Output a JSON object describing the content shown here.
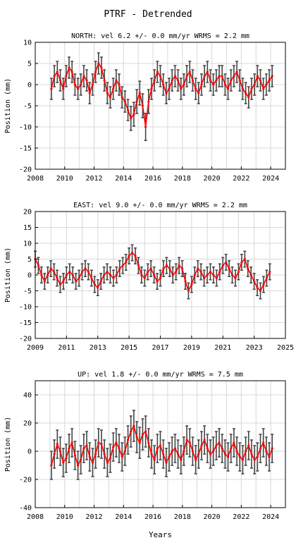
{
  "figure": {
    "title": "PTRF - Detrended",
    "xlabel": "Years"
  },
  "colors": {
    "error_bars": "#444444",
    "series": "#ff0000",
    "grid": "#d8d8d8",
    "axes": "#000000"
  },
  "chart_data": [
    {
      "type": "scatter",
      "title": "NORTH: vel 6.2 +/- 0.0 mm/yr WRMS = 2.2 mm",
      "ylabel": "Position (mm)",
      "xlim": [
        2008,
        2025
      ],
      "ylim": [
        -20,
        10
      ],
      "xticks": [
        2008,
        2010,
        2012,
        2014,
        2016,
        2018,
        2020,
        2022,
        2024
      ],
      "yticks": [
        -20,
        -15,
        -10,
        -5,
        0,
        5,
        10
      ],
      "grid": true,
      "series": [
        {
          "x": [
            2009.1,
            2009.3,
            2009.5,
            2009.7,
            2009.9,
            2010.1,
            2010.3,
            2010.5,
            2010.7,
            2010.9,
            2011.1,
            2011.3,
            2011.5,
            2011.7,
            2011.9,
            2012.1,
            2012.3,
            2012.5,
            2012.7,
            2012.9,
            2013.1,
            2013.3,
            2013.5,
            2013.7,
            2013.9,
            2014.1,
            2014.3,
            2014.5,
            2014.7,
            2014.9,
            2015.1,
            2015.3,
            2015.5,
            2015.7,
            2015.9,
            2016.1,
            2016.3,
            2016.5,
            2016.7,
            2016.9,
            2017.1,
            2017.3,
            2017.5,
            2017.7,
            2017.9,
            2018.1,
            2018.3,
            2018.5,
            2018.7,
            2018.9,
            2019.1,
            2019.3,
            2019.5,
            2019.7,
            2019.9,
            2020.1,
            2020.3,
            2020.5,
            2020.7,
            2020.9,
            2021.1,
            2021.3,
            2021.5,
            2021.7,
            2021.9,
            2022.1,
            2022.3,
            2022.5,
            2022.7,
            2022.9,
            2023.1,
            2023.3,
            2023.5,
            2023.7,
            2023.9,
            2024.1
          ],
          "y": [
            -1,
            2,
            3,
            1,
            -1,
            2,
            4,
            3,
            0,
            -1,
            0,
            2,
            1,
            -2,
            0,
            3,
            5,
            4,
            1,
            -2,
            -3,
            -1,
            1,
            0,
            -3,
            -4,
            -6,
            -8,
            -7,
            -4,
            -2,
            -5,
            -10,
            -4,
            -1,
            1,
            3,
            2,
            0,
            -2,
            -1,
            1,
            2,
            1,
            -1,
            0,
            2,
            3,
            1,
            -1,
            -2,
            0,
            2,
            3,
            1,
            0,
            1,
            2,
            2,
            0,
            -1,
            1,
            2,
            3,
            1,
            -1,
            -2,
            -3,
            -1,
            0,
            2,
            1,
            -1,
            0,
            1,
            2
          ],
          "err": [
            2.5,
            2.5,
            2.5,
            2.5,
            2.5,
            2.5,
            2.5,
            2.5,
            2.5,
            2.5,
            2.5,
            2.5,
            2.5,
            2.5,
            2.5,
            2.5,
            2.5,
            2.5,
            2.5,
            2.5,
            2.5,
            2.5,
            2.5,
            2.5,
            2.5,
            2.5,
            2.5,
            2.8,
            2.8,
            2.8,
            2.8,
            2.8,
            3.2,
            2.8,
            2.5,
            2.5,
            2.5,
            2.5,
            2.5,
            2.5,
            2.5,
            2.5,
            2.5,
            2.5,
            2.5,
            2.5,
            2.5,
            2.5,
            2.5,
            2.5,
            2.5,
            2.5,
            2.5,
            2.5,
            2.5,
            2.5,
            2.5,
            2.5,
            2.5,
            2.5,
            2.5,
            2.5,
            2.5,
            2.5,
            2.5,
            2.5,
            2.5,
            2.5,
            2.5,
            2.5,
            2.5,
            2.5,
            2.5,
            2.5,
            2.5,
            2.5
          ]
        }
      ]
    },
    {
      "type": "scatter",
      "title": "EAST: vel 9.0 +/- 0.0 mm/yr WRMS = 2.2 mm",
      "ylabel": "Position (mm)",
      "xlim": [
        2009,
        2025
      ],
      "ylim": [
        -20,
        20
      ],
      "xticks": [
        2009,
        2011,
        2013,
        2015,
        2017,
        2019,
        2021,
        2023,
        2025
      ],
      "yticks": [
        -20,
        -15,
        -10,
        -5,
        0,
        5,
        10,
        15,
        20
      ],
      "grid": true,
      "series": [
        {
          "x": [
            2009.0,
            2009.2,
            2009.4,
            2009.6,
            2009.8,
            2010.0,
            2010.2,
            2010.4,
            2010.6,
            2010.8,
            2011.0,
            2011.2,
            2011.4,
            2011.6,
            2011.8,
            2012.0,
            2012.2,
            2012.4,
            2012.6,
            2012.8,
            2013.0,
            2013.2,
            2013.4,
            2013.6,
            2013.8,
            2014.0,
            2014.2,
            2014.4,
            2014.6,
            2014.8,
            2015.0,
            2015.2,
            2015.4,
            2015.6,
            2015.8,
            2016.0,
            2016.2,
            2016.4,
            2016.6,
            2016.8,
            2017.0,
            2017.2,
            2017.4,
            2017.6,
            2017.8,
            2018.0,
            2018.2,
            2018.4,
            2018.6,
            2018.8,
            2019.0,
            2019.2,
            2019.4,
            2019.6,
            2019.8,
            2020.0,
            2020.2,
            2020.4,
            2020.6,
            2020.8,
            2021.0,
            2021.2,
            2021.4,
            2021.6,
            2021.8,
            2022.0,
            2022.2,
            2022.4,
            2022.6,
            2022.8,
            2023.0,
            2023.2,
            2023.4,
            2023.6,
            2023.8,
            2024.0
          ],
          "y": [
            5,
            3,
            0,
            -2,
            0,
            2,
            1,
            -1,
            -3,
            -2,
            0,
            1,
            0,
            -2,
            -1,
            1,
            2,
            1,
            -1,
            -3,
            -4,
            -2,
            0,
            1,
            0,
            -1,
            0,
            2,
            3,
            4,
            6,
            7,
            6,
            3,
            0,
            -1,
            1,
            2,
            0,
            -2,
            -1,
            2,
            3,
            2,
            0,
            1,
            3,
            2,
            -2,
            -5,
            -3,
            0,
            2,
            1,
            -1,
            0,
            1,
            0,
            -1,
            1,
            3,
            4,
            2,
            0,
            -1,
            1,
            4,
            5,
            2,
            0,
            -2,
            -4,
            -5,
            -3,
            -1,
            1
          ],
          "err": [
            2.5,
            2.5,
            2.5,
            2.5,
            2.5,
            2.5,
            2.5,
            2.5,
            2.5,
            2.5,
            2.5,
            2.5,
            2.5,
            2.5,
            2.5,
            2.5,
            2.5,
            2.5,
            2.5,
            2.5,
            2.5,
            2.5,
            2.5,
            2.5,
            2.5,
            2.5,
            2.5,
            2.5,
            2.5,
            2.5,
            2.5,
            2.5,
            2.5,
            2.5,
            2.5,
            2.5,
            2.5,
            2.5,
            2.5,
            2.5,
            2.5,
            2.5,
            2.5,
            2.5,
            2.5,
            2.5,
            2.5,
            2.5,
            2.5,
            2.5,
            2.5,
            2.5,
            2.5,
            2.5,
            2.5,
            2.5,
            2.5,
            2.5,
            2.5,
            2.5,
            2.5,
            2.5,
            2.5,
            2.5,
            2.5,
            2.5,
            2.5,
            2.5,
            2.5,
            2.5,
            2.5,
            2.5,
            2.5,
            2.5,
            2.5,
            2.5
          ]
        }
      ]
    },
    {
      "type": "scatter",
      "title": "UP: vel 1.8 +/- 0.0 mm/yr WRMS = 7.5 mm",
      "ylabel": "Position (mm)",
      "xlim": [
        2008,
        2025
      ],
      "ylim": [
        -40,
        50
      ],
      "xticks": [
        2008,
        2010,
        2012,
        2014,
        2016,
        2018,
        2020,
        2022,
        2024
      ],
      "yticks": [
        -40,
        -20,
        0,
        20,
        40
      ],
      "grid": true,
      "series": [
        {
          "x": [
            2009.1,
            2009.3,
            2009.5,
            2009.7,
            2009.9,
            2010.1,
            2010.3,
            2010.5,
            2010.7,
            2010.9,
            2011.1,
            2011.3,
            2011.5,
            2011.7,
            2011.9,
            2012.1,
            2012.3,
            2012.5,
            2012.7,
            2012.9,
            2013.1,
            2013.3,
            2013.5,
            2013.7,
            2013.9,
            2014.1,
            2014.3,
            2014.5,
            2014.7,
            2014.9,
            2015.1,
            2015.3,
            2015.5,
            2015.7,
            2015.9,
            2016.1,
            2016.3,
            2016.5,
            2016.7,
            2016.9,
            2017.1,
            2017.3,
            2017.5,
            2017.7,
            2017.9,
            2018.1,
            2018.3,
            2018.5,
            2018.7,
            2018.9,
            2019.1,
            2019.3,
            2019.5,
            2019.7,
            2019.9,
            2020.1,
            2020.3,
            2020.5,
            2020.7,
            2020.9,
            2021.1,
            2021.3,
            2021.5,
            2021.7,
            2021.9,
            2022.1,
            2022.3,
            2022.5,
            2022.7,
            2022.9,
            2023.1,
            2023.3,
            2023.5,
            2023.7,
            2023.9,
            2024.1
          ],
          "y": [
            -10,
            -2,
            5,
            0,
            -8,
            -5,
            2,
            6,
            -3,
            -10,
            -6,
            2,
            4,
            -4,
            -8,
            -2,
            6,
            5,
            -2,
            -8,
            -5,
            3,
            6,
            2,
            -4,
            0,
            8,
            14,
            18,
            10,
            6,
            12,
            14,
            6,
            -2,
            -6,
            2,
            4,
            -2,
            -8,
            -4,
            0,
            2,
            -2,
            -6,
            0,
            8,
            6,
            0,
            -6,
            -2,
            4,
            8,
            2,
            -2,
            0,
            4,
            6,
            2,
            -2,
            -4,
            2,
            6,
            0,
            -4,
            -6,
            0,
            4,
            -2,
            -6,
            -4,
            2,
            6,
            0,
            -4,
            2
          ],
          "err": [
            10,
            10,
            10,
            10,
            10,
            10,
            10,
            10,
            10,
            10,
            10,
            10,
            10,
            10,
            10,
            10,
            10,
            10,
            10,
            10,
            10,
            10,
            10,
            10,
            10,
            10,
            10,
            11,
            11,
            11,
            11,
            11,
            11,
            10,
            10,
            10,
            10,
            10,
            10,
            10,
            10,
            10,
            10,
            10,
            10,
            10,
            10,
            10,
            10,
            10,
            10,
            10,
            10,
            10,
            10,
            10,
            10,
            10,
            10,
            10,
            10,
            10,
            10,
            10,
            10,
            10,
            10,
            10,
            10,
            10,
            10,
            10,
            10,
            10,
            10,
            10
          ]
        }
      ]
    }
  ]
}
